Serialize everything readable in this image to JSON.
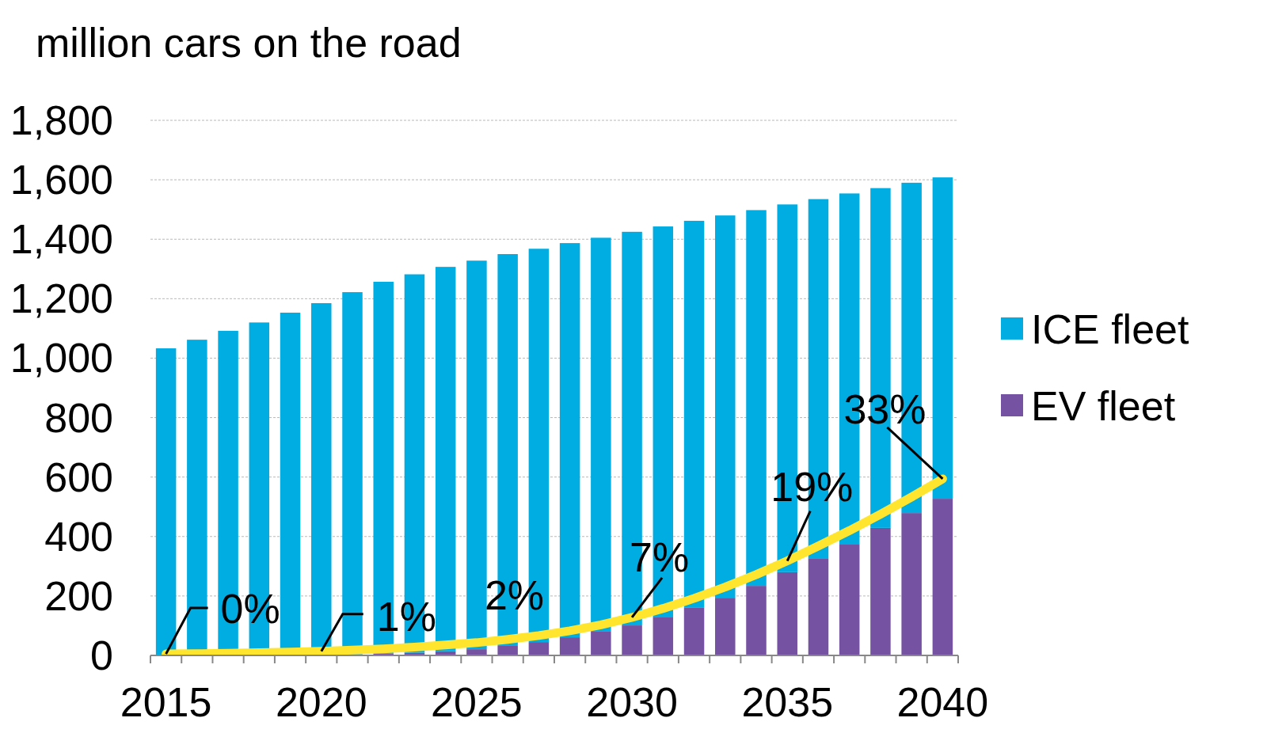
{
  "chart_data": {
    "type": "bar",
    "ylabel": "million cars on the road",
    "x": [
      2015,
      2016,
      2017,
      2018,
      2019,
      2020,
      2021,
      2022,
      2023,
      2024,
      2025,
      2026,
      2027,
      2028,
      2029,
      2030,
      2031,
      2032,
      2033,
      2034,
      2035,
      2036,
      2037,
      2038,
      2039,
      2040
    ],
    "xlim": [
      2014.5,
      2040.5
    ],
    "xticks": [
      2015,
      2020,
      2025,
      2030,
      2035,
      2040
    ],
    "ylim": [
      0,
      1800
    ],
    "yticks": [
      0,
      200,
      400,
      600,
      800,
      {
        "value": 1000,
        "label": "1,000"
      },
      {
        "value": 1200,
        "label": "1,200"
      },
      {
        "value": 1400,
        "label": "1,400"
      },
      {
        "value": 1600,
        "label": "1,600"
      },
      {
        "value": 1800,
        "label": "1,800"
      }
    ],
    "grid": true,
    "stacked": true,
    "legend": "right",
    "series": [
      {
        "name": "EV fleet",
        "color": "#7652a2",
        "values": [
          1,
          1,
          1,
          2,
          3,
          4,
          4,
          6,
          9,
          14,
          21,
          32,
          45,
          61,
          80,
          101,
          130,
          160,
          194,
          234,
          280,
          327,
          375,
          429,
          479,
          527
        ]
      },
      {
        "name": "ICE fleet",
        "color": "#00ade3",
        "values": [
          1032,
          1061,
          1091,
          1118,
          1150,
          1181,
          1218,
          1251,
          1273,
          1293,
          1307,
          1318,
          1323,
          1326,
          1325,
          1324,
          1313,
          1302,
          1286,
          1264,
          1237,
          1208,
          1179,
          1143,
          1111,
          1081
        ]
      },
      {
        "type": "line",
        "color": "#ffe52e",
        "values": [
          5,
          6,
          7,
          9,
          11,
          14,
          18,
          22,
          28,
          35,
          43,
          54,
          67,
          83,
          103,
          128,
          158,
          192,
          230,
          272,
          318,
          368,
          420,
          475,
          533,
          594
        ]
      }
    ],
    "annotations": [
      {
        "x": 2015,
        "text": "0%"
      },
      {
        "x": 2020,
        "text": "1%"
      },
      {
        "x": 2025,
        "text": "2%"
      },
      {
        "x": 2030,
        "text": "7%"
      },
      {
        "x": 2035,
        "text": "19%"
      },
      {
        "x": 2040,
        "text": "33%"
      }
    ]
  }
}
